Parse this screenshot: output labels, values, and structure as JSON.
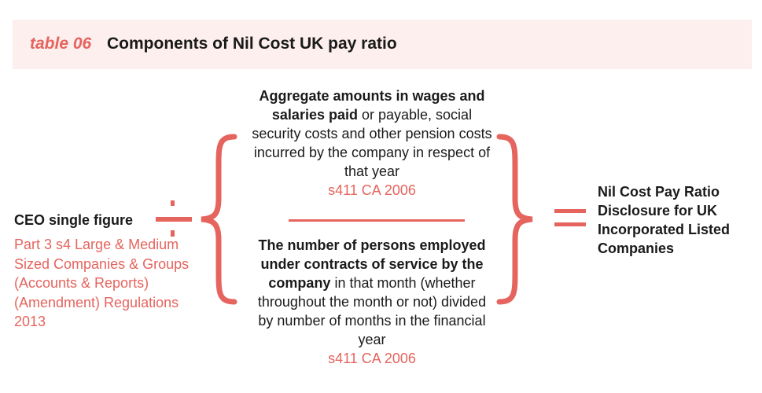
{
  "header": {
    "tag": "table 06",
    "title": "Components of Nil Cost UK pay ratio"
  },
  "left": {
    "label": "CEO single figure",
    "reference": "Part 3 s4 Large & Medium Sized Companies & Groups (Accounts & Reports) (Amendment) Regulations 2013"
  },
  "numerator": {
    "bold": "Aggregate amounts in wages and salaries paid",
    "text": " or payable, social security costs and other pension costs incurred by the company in respect of that year",
    "reference": "s411 CA 2006"
  },
  "denominator": {
    "bold": "The number of persons employed under contracts of service by the company",
    "text": " in that month (whether throughout the month or not) divided by number of months in the financial year",
    "reference": "s411 CA 2006"
  },
  "result": {
    "label": "Nil Cost Pay Ratio Disclosure for UK Incorporated Listed Companies"
  },
  "colors": {
    "accent": "#e5645e",
    "header_bg": "#fcefed",
    "text": "#1a1a1a"
  }
}
